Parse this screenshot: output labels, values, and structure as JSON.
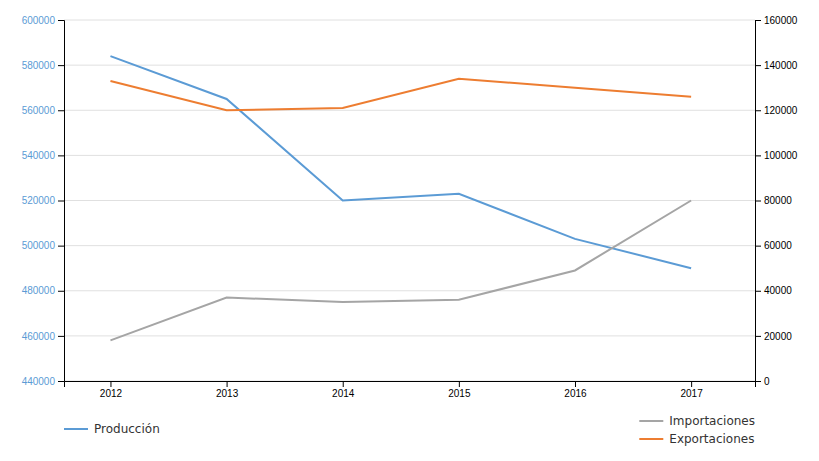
{
  "chart_data": {
    "type": "line",
    "x": [
      2012,
      2013,
      2014,
      2015,
      2016,
      2017
    ],
    "xlim": [
      2011.6,
      2017.55
    ],
    "xticks": [
      2012,
      2013,
      2014,
      2015,
      2016,
      2017
    ],
    "ylim": [
      440000,
      600000
    ],
    "yticks": [
      440000,
      460000,
      480000,
      500000,
      520000,
      540000,
      560000,
      580000,
      600000
    ],
    "y2lim": [
      0,
      160000
    ],
    "y2ticks": [
      0,
      20000,
      40000,
      60000,
      80000,
      100000,
      120000,
      140000,
      160000
    ],
    "grid": true,
    "legend": "bottom",
    "series": [
      {
        "name": "Producción",
        "color": "#5B9BD5",
        "values": [
          584000,
          565000,
          520000,
          523000,
          503000,
          490000
        ]
      },
      {
        "name": "Importaciones",
        "color": "#A5A5A5",
        "axis": "y2",
        "values": [
          18000,
          37000,
          35000,
          36000,
          49000,
          80000
        ]
      },
      {
        "name": "Exportaciones",
        "color": "#ED7D31",
        "axis": "y2",
        "values": [
          133000,
          120000,
          121000,
          134000,
          130000,
          126000
        ]
      }
    ]
  }
}
